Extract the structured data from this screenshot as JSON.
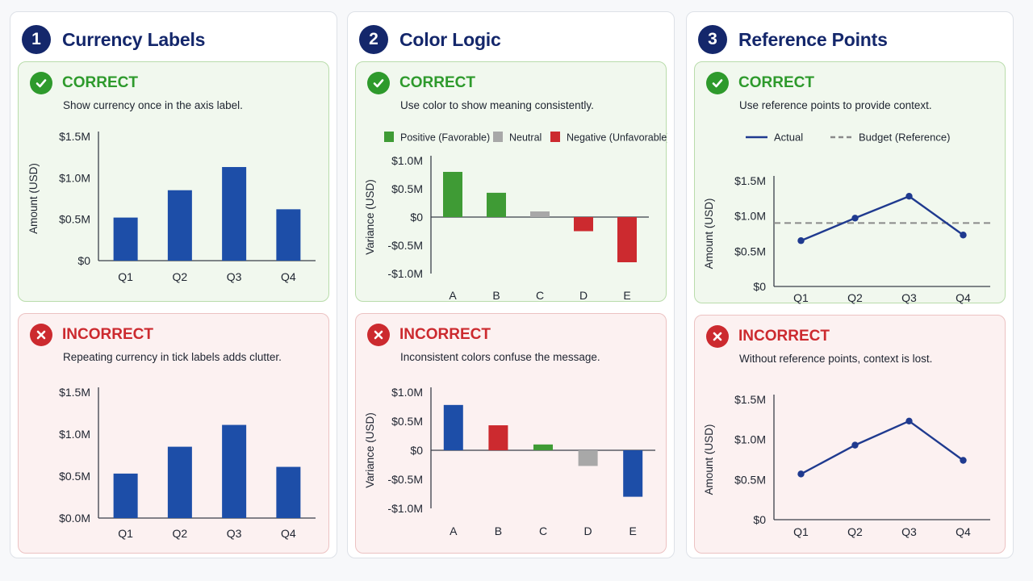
{
  "sections": [
    {
      "number": "1",
      "title": "Currency Labels",
      "correct": {
        "verdict": "CORRECT",
        "note": "Show currency once in the axis label.",
        "chart_data": {
          "type": "bar",
          "categories": [
            "Q1",
            "Q2",
            "Q3",
            "Q4"
          ],
          "values": [
            0.52,
            0.85,
            1.13,
            0.62
          ],
          "ylabel": "Amount (USD)",
          "ylim": [
            0,
            1.5
          ],
          "yticks": [
            0,
            0.5,
            1.0,
            1.5
          ],
          "ytick_labels": [
            "$0",
            "$0.5M",
            "$1.0M",
            "$1.5M"
          ],
          "bar_color": "#1d4ea8"
        }
      },
      "incorrect": {
        "verdict": "INCORRECT",
        "note": "Repeating currency in tick labels adds clutter.",
        "chart_data": {
          "type": "bar",
          "categories": [
            "Q1",
            "Q2",
            "Q3",
            "Q4"
          ],
          "values": [
            0.53,
            0.85,
            1.11,
            0.61
          ],
          "ylabel": "",
          "ylim": [
            0,
            1.5
          ],
          "yticks": [
            0,
            0.5,
            1.0,
            1.5
          ],
          "ytick_labels": [
            "$0.0M",
            "$0.5M",
            "$1.0M",
            "$1.5M"
          ],
          "bar_color": "#1d4ea8"
        }
      }
    },
    {
      "number": "2",
      "title": "Color Logic",
      "correct": {
        "verdict": "CORRECT",
        "note": "Use color to show meaning consistently.",
        "legend": [
          {
            "label": "Positive (Favorable)",
            "color": "#3f9b35"
          },
          {
            "label": "Neutral",
            "color": "#a8a8a8"
          },
          {
            "label": "Negative (Unfavorable)",
            "color": "#cc2a2f"
          }
        ],
        "chart_data": {
          "type": "bar",
          "categories": [
            "A",
            "B",
            "C",
            "D",
            "E"
          ],
          "values": [
            0.8,
            0.43,
            0.1,
            -0.25,
            -0.8
          ],
          "colors": [
            "#3f9b35",
            "#3f9b35",
            "#a8a8a8",
            "#cc2a2f",
            "#cc2a2f"
          ],
          "ylabel": "Variance (USD)",
          "ylim": [
            -1.0,
            1.0
          ],
          "yticks": [
            -1.0,
            -0.5,
            0,
            0.5,
            1.0
          ],
          "ytick_labels": [
            "-$1.0M",
            "-$0.5M",
            "$0",
            "$0.5M",
            "$1.0M"
          ]
        }
      },
      "incorrect": {
        "verdict": "INCORRECT",
        "note": "Inconsistent colors confuse the message.",
        "chart_data": {
          "type": "bar",
          "categories": [
            "A",
            "B",
            "C",
            "D",
            "E"
          ],
          "values": [
            0.78,
            0.43,
            0.1,
            -0.27,
            -0.8
          ],
          "colors": [
            "#1d4ea8",
            "#cc2a2f",
            "#3f9b35",
            "#a8a8a8",
            "#1d4ea8"
          ],
          "ylabel": "Variance (USD)",
          "ylim": [
            -1.0,
            1.0
          ],
          "yticks": [
            -1.0,
            -0.5,
            0,
            0.5,
            1.0
          ],
          "ytick_labels": [
            "-$1.0M",
            "-$0.5M",
            "$0",
            "$0.5M",
            "$1.0M"
          ]
        }
      }
    },
    {
      "number": "3",
      "title": "Reference Points",
      "correct": {
        "verdict": "CORRECT",
        "note": "Use reference points to provide context.",
        "legend": [
          {
            "label": "Actual",
            "style": "solid",
            "color": "#1f3a8f"
          },
          {
            "label": "Budget (Reference)",
            "style": "dashed",
            "color": "#8a8a8a"
          }
        ],
        "chart_data": {
          "type": "line",
          "categories": [
            "Q1",
            "Q2",
            "Q3",
            "Q4"
          ],
          "series": [
            {
              "name": "Actual",
              "values": [
                0.65,
                0.97,
                1.28,
                0.73
              ]
            }
          ],
          "reference": {
            "name": "Budget (Reference)",
            "value": 0.9
          },
          "ylabel": "Amount (USD)",
          "ylim": [
            0,
            1.5
          ],
          "yticks": [
            0,
            0.5,
            1.0,
            1.5
          ],
          "ytick_labels": [
            "$0",
            "$0.5M",
            "$1.0M",
            "$1.5M"
          ],
          "line_color": "#1f3a8f"
        }
      },
      "incorrect": {
        "verdict": "INCORRECT",
        "note": "Without reference points, context is lost.",
        "chart_data": {
          "type": "line",
          "categories": [
            "Q1",
            "Q2",
            "Q3",
            "Q4"
          ],
          "series": [
            {
              "values": [
                0.57,
                0.93,
                1.23,
                0.74
              ]
            }
          ],
          "ylabel": "Amount (USD)",
          "ylim": [
            0,
            1.5
          ],
          "yticks": [
            0,
            0.5,
            1.0,
            1.5
          ],
          "ytick_labels": [
            "$0",
            "$0.5M",
            "$1.0M",
            "$1.5M"
          ],
          "line_color": "#1f3a8f"
        }
      }
    }
  ]
}
